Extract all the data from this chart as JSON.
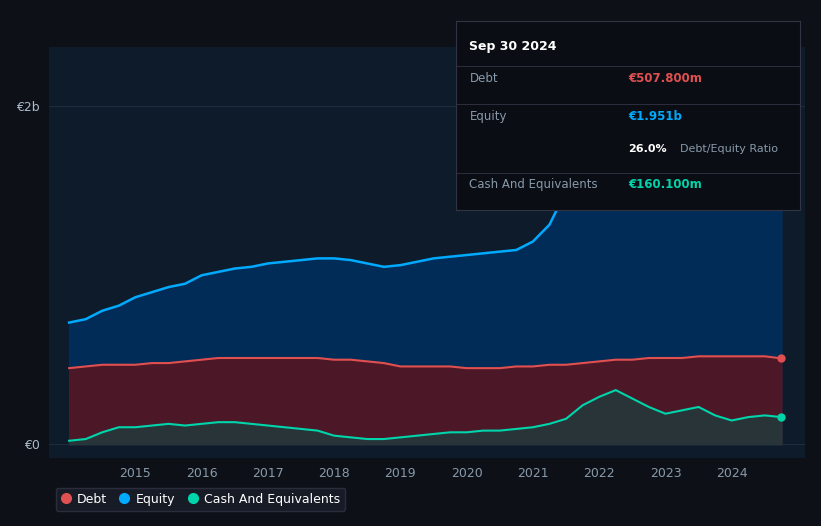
{
  "bg_color": "#0d1117",
  "chart_bg": "#0d1b2a",
  "grid_color": "#1e2d3d",
  "years_x": [
    2014.0,
    2014.25,
    2014.5,
    2014.75,
    2015.0,
    2015.25,
    2015.5,
    2015.75,
    2016.0,
    2016.25,
    2016.5,
    2016.75,
    2017.0,
    2017.25,
    2017.5,
    2017.75,
    2018.0,
    2018.25,
    2018.5,
    2018.75,
    2019.0,
    2019.25,
    2019.5,
    2019.75,
    2020.0,
    2020.25,
    2020.5,
    2020.75,
    2021.0,
    2021.25,
    2021.5,
    2021.75,
    2022.0,
    2022.25,
    2022.5,
    2022.75,
    2023.0,
    2023.25,
    2023.5,
    2023.75,
    2024.0,
    2024.25,
    2024.5,
    2024.75
  ],
  "equity": [
    0.72,
    0.74,
    0.79,
    0.82,
    0.87,
    0.9,
    0.93,
    0.95,
    1.0,
    1.02,
    1.04,
    1.05,
    1.07,
    1.08,
    1.09,
    1.1,
    1.1,
    1.09,
    1.07,
    1.05,
    1.06,
    1.08,
    1.1,
    1.11,
    1.12,
    1.13,
    1.14,
    1.15,
    1.2,
    1.3,
    1.5,
    1.65,
    1.8,
    2.0,
    2.1,
    2.2,
    2.3,
    2.1,
    2.0,
    1.95,
    1.95,
    1.96,
    1.95,
    1.951
  ],
  "debt": [
    0.45,
    0.46,
    0.47,
    0.47,
    0.47,
    0.48,
    0.48,
    0.49,
    0.5,
    0.51,
    0.51,
    0.51,
    0.51,
    0.51,
    0.51,
    0.51,
    0.5,
    0.5,
    0.49,
    0.48,
    0.46,
    0.46,
    0.46,
    0.46,
    0.45,
    0.45,
    0.45,
    0.46,
    0.46,
    0.47,
    0.47,
    0.48,
    0.49,
    0.5,
    0.5,
    0.51,
    0.51,
    0.51,
    0.52,
    0.52,
    0.52,
    0.52,
    0.52,
    0.5078
  ],
  "cash": [
    0.02,
    0.03,
    0.07,
    0.1,
    0.1,
    0.11,
    0.12,
    0.11,
    0.12,
    0.13,
    0.13,
    0.12,
    0.11,
    0.1,
    0.09,
    0.08,
    0.05,
    0.04,
    0.03,
    0.03,
    0.04,
    0.05,
    0.06,
    0.07,
    0.07,
    0.08,
    0.08,
    0.09,
    0.1,
    0.12,
    0.15,
    0.23,
    0.28,
    0.32,
    0.27,
    0.22,
    0.18,
    0.2,
    0.22,
    0.17,
    0.14,
    0.16,
    0.17,
    0.1601
  ],
  "equity_color": "#00aaff",
  "debt_color": "#e05050",
  "cash_color": "#00d4aa",
  "equity_fill": "#003060",
  "debt_fill": "#5a1520",
  "cash_fill": "#1a4040",
  "xlabel_color": "#8899aa",
  "ylabel_color": "#aabbcc",
  "annotation_bg": "#0a0e14",
  "annotation_border": "#333344",
  "annotation_title": "#ffffff",
  "annotation_label": "#8899aa",
  "annotation_debt_val": "#e05050",
  "annotation_equity_val": "#00aaff",
  "annotation_ratio_val": "#ffffff",
  "annotation_cash_val": "#00d4aa",
  "annotation_date": "Sep 30 2024",
  "annotation_debt_label": "Debt",
  "annotation_debt_value": "€507.800m",
  "annotation_equity_label": "Equity",
  "annotation_equity_value": "€1.951b",
  "annotation_ratio": "26.0%",
  "annotation_ratio_label": "Debt/Equity Ratio",
  "annotation_cash_label": "Cash And Equivalents",
  "annotation_cash_value": "€160.100m",
  "ytick_labels": [
    "€0",
    "€2b"
  ],
  "ytick_values": [
    0,
    2.0
  ],
  "xtick_years": [
    2015,
    2016,
    2017,
    2018,
    2019,
    2020,
    2021,
    2022,
    2023,
    2024
  ],
  "legend_items": [
    {
      "label": "Debt",
      "color": "#e05050"
    },
    {
      "label": "Equity",
      "color": "#00aaff"
    },
    {
      "label": "Cash And Equivalents",
      "color": "#00d4aa"
    }
  ],
  "ymax": 2.35,
  "ymin": -0.08
}
